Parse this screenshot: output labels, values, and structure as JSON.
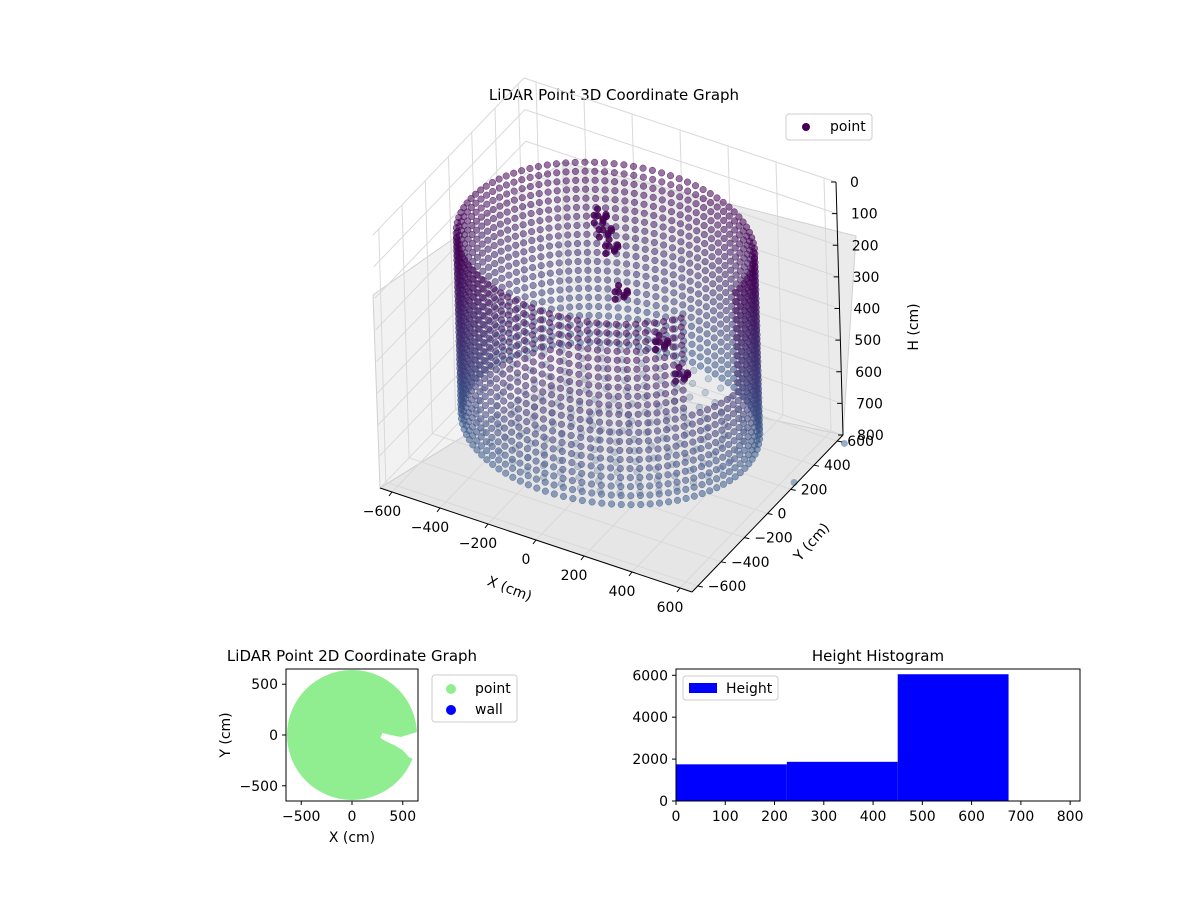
{
  "chart_data": [
    {
      "type": "scatter",
      "projection": "3d",
      "title": "LiDAR Point 3D Coordinate Graph",
      "xlabel": "X (cm)",
      "ylabel": "Y (cm)",
      "zlabel": "H (cm)",
      "x_ticks": [
        "−600",
        "−400",
        "−200",
        "0",
        "200",
        "400",
        "600"
      ],
      "y_ticks": [
        "−600",
        "−400",
        "−200",
        "0",
        "200",
        "400",
        "600"
      ],
      "z_ticks": [
        "0",
        "100",
        "200",
        "300",
        "400",
        "500",
        "600",
        "700",
        "800"
      ],
      "xlim": [
        -650,
        650
      ],
      "ylim": [
        -650,
        650
      ],
      "zlim": [
        0,
        800
      ],
      "z_axis_inverted": true,
      "legend": {
        "placement": "top-right",
        "entries": [
          {
            "label": "point",
            "color": "#440154"
          }
        ]
      },
      "colors": {
        "top": "#440154",
        "bottom": "#3b5b8c",
        "stray": "#7c9ab8"
      },
      "shape": {
        "kind": "cylindrical wall with floor",
        "radius_cm": 560,
        "height_range_cm": [
          110,
          680
        ],
        "opening_direction": "+Y",
        "notch_near_x_cm": 450
      },
      "clusters": [
        {
          "x": -180,
          "y": 320,
          "h": 180
        },
        {
          "x": -150,
          "y": 300,
          "h": 210
        },
        {
          "x": -100,
          "y": 250,
          "h": 230
        },
        {
          "x": 0,
          "y": 120,
          "h": 300
        },
        {
          "x": 250,
          "y": -50,
          "h": 330
        },
        {
          "x": 380,
          "y": -150,
          "h": 360
        }
      ],
      "stray_points": [
        {
          "x": 680,
          "y": 600,
          "h": 800
        },
        {
          "x": 640,
          "y": 250,
          "h": 800
        }
      ],
      "grid": true
    },
    {
      "type": "scatter",
      "title": "LiDAR Point 2D Coordinate Graph",
      "xlabel": "X (cm)",
      "ylabel": "Y (cm)",
      "x_ticks": [
        "−500",
        "0",
        "500"
      ],
      "y_ticks": [
        "−500",
        "0",
        "500"
      ],
      "xlim": [
        -650,
        650
      ],
      "ylim": [
        -650,
        650
      ],
      "series": [
        {
          "name": "point",
          "color": "#90ee90",
          "disk_center": [
            0,
            0
          ],
          "disk_radius": 640,
          "cutout_polygon": [
            [
              280,
              -30
            ],
            [
              300,
              20
            ],
            [
              380,
              0
            ],
            [
              480,
              -20
            ],
            [
              640,
              30
            ],
            [
              640,
              -250
            ],
            [
              560,
              -220
            ],
            [
              500,
              -150
            ],
            [
              420,
              -100
            ],
            [
              330,
              -60
            ]
          ]
        },
        {
          "name": "wall",
          "color": "#0000ff",
          "count": 0
        }
      ],
      "legend": {
        "placement": "right, outside plot"
      }
    },
    {
      "type": "bar",
      "title": "Height Histogram",
      "x_ticks": [
        "0",
        "100",
        "200",
        "300",
        "400",
        "500",
        "600",
        "700",
        "800"
      ],
      "y_ticks": [
        "0",
        "2000",
        "4000",
        "6000"
      ],
      "xlim": [
        0,
        820
      ],
      "ylim": [
        0,
        6300
      ],
      "bins": [
        {
          "start": 0,
          "end": 225,
          "count": 1750
        },
        {
          "start": 225,
          "end": 450,
          "count": 1870
        },
        {
          "start": 450,
          "end": 675,
          "count": 6050
        }
      ],
      "series": [
        {
          "name": "Height",
          "color": "#0000ff"
        }
      ],
      "legend": {
        "placement": "top-left"
      }
    }
  ]
}
